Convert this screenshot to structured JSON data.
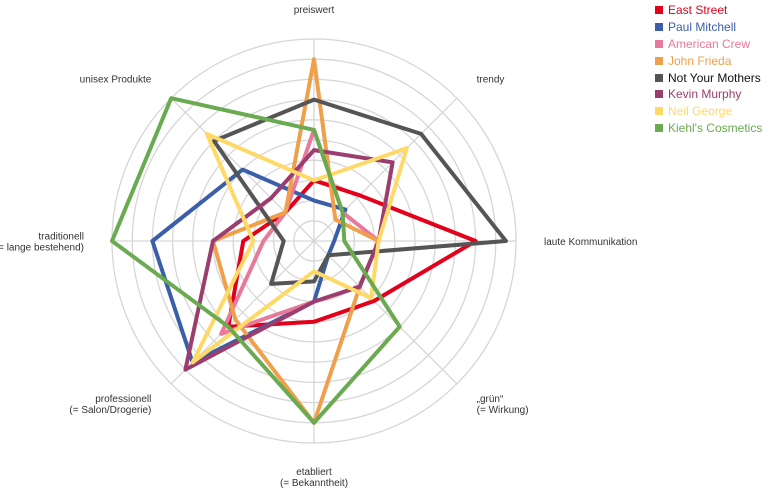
{
  "chart_data": {
    "type": "radar",
    "title": "",
    "axes": [
      {
        "label_lines": [
          "preiswert"
        ]
      },
      {
        "label_lines": [
          "trendy"
        ]
      },
      {
        "label_lines": [
          "laute Kommunikation"
        ]
      },
      {
        "label_lines": [
          "„grün“",
          "(= Wirkung)"
        ]
      },
      {
        "label_lines": [
          "etabliert",
          "(= Bekanntheit)"
        ]
      },
      {
        "label_lines": [
          "professionell",
          "(= Salon/Drogerie)"
        ]
      },
      {
        "label_lines": [
          "traditionell",
          "(= lange bestehend)"
        ]
      },
      {
        "label_lines": [
          "unisex Produkte"
        ]
      }
    ],
    "scale": {
      "min": 0,
      "max": 10,
      "rings": 10
    },
    "grid": true,
    "legend_position": "top-right",
    "series": [
      {
        "name": "East Street",
        "color": "#e2001a",
        "values": [
          3,
          3.2,
          8,
          4.2,
          4,
          6,
          3.5,
          2
        ]
      },
      {
        "name": "Paul Mitchell",
        "color": "#3a5ea8",
        "values": [
          2,
          2.2,
          1,
          1,
          3,
          8.5,
          8,
          5
        ]
      },
      {
        "name": "American Crew",
        "color": "#e8799a",
        "values": [
          5.5,
          2,
          3.2,
          3.2,
          3,
          6.5,
          2.5,
          2
        ]
      },
      {
        "name": "John Frieda",
        "color": "#f0a04b",
        "values": [
          9,
          1.5,
          3.2,
          3.2,
          9,
          5.5,
          5,
          2
        ]
      },
      {
        "name": "Not Your Mothers",
        "color": "#555555",
        "values": [
          7,
          7.5,
          9.5,
          1,
          2,
          3,
          1.5,
          7
        ]
      },
      {
        "name": "Kevin Murphy",
        "color": "#9b3d6e",
        "values": [
          4.5,
          5.5,
          3.2,
          3.2,
          3,
          9,
          5,
          3
        ]
      },
      {
        "name": "Neil George",
        "color": "#ffd966",
        "values": [
          3,
          6.5,
          3.2,
          4,
          1.5,
          8.5,
          3,
          7.5
        ]
      },
      {
        "name": "Kiehl's Cosmetics",
        "color": "#6aaa50",
        "values": [
          5.5,
          2,
          1.5,
          6,
          9,
          6,
          10,
          10
        ]
      }
    ]
  }
}
